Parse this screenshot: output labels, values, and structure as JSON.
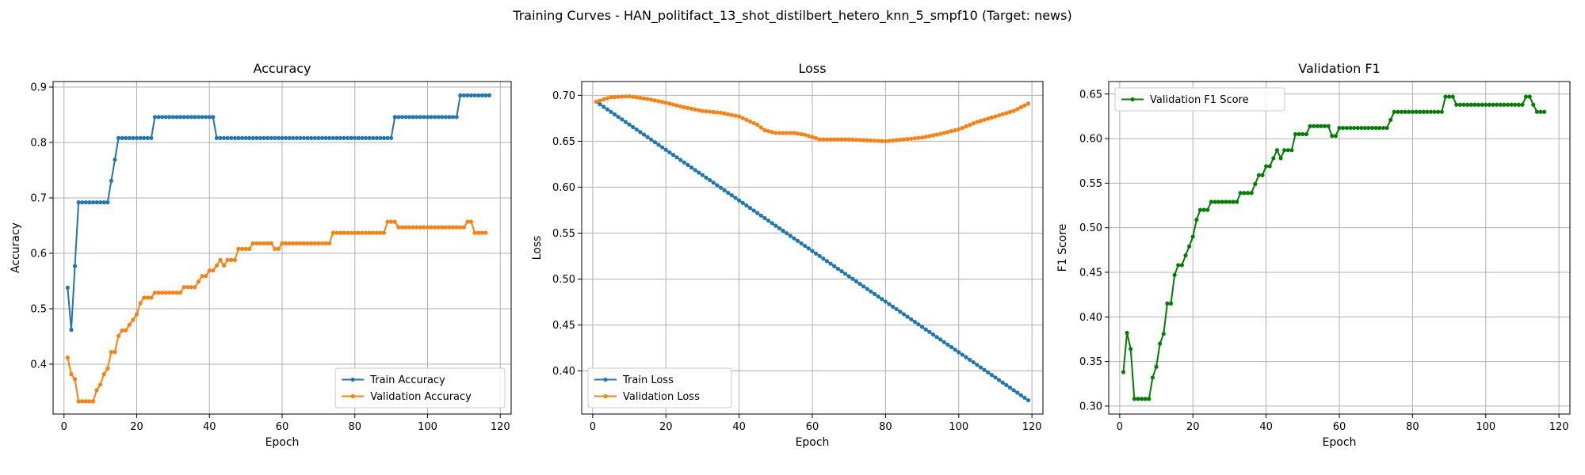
{
  "figure": {
    "suptitle": "Training Curves - HAN_politifact_13_shot_distilbert_hetero_knn_5_smpf10 (Target: news)"
  },
  "colors": {
    "train": "#1f77b4",
    "validation": "#ff7f0e",
    "f1": "#008000",
    "grid": "#b0b0b0"
  },
  "chart_data": [
    {
      "type": "line",
      "title": "Accuracy",
      "xlabel": "Epoch",
      "ylabel": "Accuracy",
      "xlim": [
        -3,
        123
      ],
      "ylim": [
        0.31,
        0.91
      ],
      "xticks": [
        0,
        20,
        40,
        60,
        80,
        100,
        120
      ],
      "yticks": [
        0.4,
        0.5,
        0.6,
        0.7,
        0.8,
        0.9
      ],
      "grid": true,
      "legend_position": "lower-right",
      "x_start": 1,
      "series": [
        {
          "name": "Train Accuracy",
          "color": "#1f77b4",
          "runs": [
            [
              0.538,
              1
            ],
            [
              0.462,
              1
            ],
            [
              0.577,
              1
            ],
            [
              0.692,
              9
            ],
            [
              0.731,
              1
            ],
            [
              0.769,
              1
            ],
            [
              0.808,
              10
            ],
            [
              0.846,
              17
            ],
            [
              0.808,
              49
            ],
            [
              0.846,
              18
            ],
            [
              0.885,
              9
            ]
          ]
        },
        {
          "name": "Validation Accuracy",
          "color": "#ff7f0e",
          "runs": [
            [
              0.412,
              1
            ],
            [
              0.382,
              1
            ],
            [
              0.373,
              1
            ],
            [
              0.333,
              5
            ],
            [
              0.353,
              1
            ],
            [
              0.363,
              1
            ],
            [
              0.382,
              1
            ],
            [
              0.392,
              1
            ],
            [
              0.422,
              2
            ],
            [
              0.451,
              1
            ],
            [
              0.461,
              2
            ],
            [
              0.471,
              1
            ],
            [
              0.48,
              1
            ],
            [
              0.49,
              1
            ],
            [
              0.51,
              1
            ],
            [
              0.52,
              3
            ],
            [
              0.529,
              8
            ],
            [
              0.539,
              4
            ],
            [
              0.549,
              1
            ],
            [
              0.559,
              2
            ],
            [
              0.569,
              2
            ],
            [
              0.578,
              1
            ],
            [
              0.588,
              1
            ],
            [
              0.578,
              1
            ],
            [
              0.588,
              3
            ],
            [
              0.608,
              4
            ],
            [
              0.618,
              6
            ],
            [
              0.608,
              2
            ],
            [
              0.618,
              14
            ],
            [
              0.637,
              15
            ],
            [
              0.657,
              3
            ],
            [
              0.647,
              19
            ],
            [
              0.657,
              2
            ],
            [
              0.637,
              4
            ]
          ]
        }
      ]
    },
    {
      "type": "line",
      "title": "Loss",
      "xlabel": "Epoch",
      "ylabel": "Loss",
      "xlim": [
        -3,
        123
      ],
      "ylim": [
        0.353,
        0.715
      ],
      "xticks": [
        0,
        20,
        40,
        60,
        80,
        100,
        120
      ],
      "yticks": [
        0.4,
        0.45,
        0.5,
        0.55,
        0.6,
        0.65,
        0.7
      ],
      "grid": true,
      "legend_position": "lower-left",
      "x_start": 1,
      "series": [
        {
          "name": "Train Loss",
          "color": "#1f77b4",
          "linear": {
            "from": 0.693,
            "to": 0.368,
            "count": 119
          }
        },
        {
          "name": "Validation Loss",
          "color": "#ff7f0e",
          "points": [
            [
              1,
              0.693
            ],
            [
              5,
              0.698
            ],
            [
              10,
              0.699
            ],
            [
              15,
              0.696
            ],
            [
              20,
              0.692
            ],
            [
              25,
              0.687
            ],
            [
              30,
              0.683
            ],
            [
              35,
              0.681
            ],
            [
              40,
              0.677
            ],
            [
              45,
              0.668
            ],
            [
              47,
              0.662
            ],
            [
              50,
              0.659
            ],
            [
              55,
              0.659
            ],
            [
              58,
              0.657
            ],
            [
              62,
              0.652
            ],
            [
              70,
              0.652
            ],
            [
              75,
              0.651
            ],
            [
              80,
              0.65
            ],
            [
              85,
              0.652
            ],
            [
              90,
              0.654
            ],
            [
              95,
              0.658
            ],
            [
              100,
              0.663
            ],
            [
              105,
              0.671
            ],
            [
              110,
              0.677
            ],
            [
              115,
              0.683
            ],
            [
              119,
              0.691
            ]
          ]
        }
      ]
    },
    {
      "type": "line",
      "title": "Validation F1",
      "xlabel": "Epoch",
      "ylabel": "F1 Score",
      "xlim": [
        -3,
        123
      ],
      "ylim": [
        0.291,
        0.664
      ],
      "xticks": [
        0,
        20,
        40,
        60,
        80,
        100,
        120
      ],
      "yticks": [
        0.3,
        0.35,
        0.4,
        0.45,
        0.5,
        0.55,
        0.6,
        0.65
      ],
      "grid": true,
      "legend_position": "upper-left",
      "x_start": 1,
      "series": [
        {
          "name": "Validation F1 Score",
          "color": "#008000",
          "runs": [
            [
              0.338,
              1
            ],
            [
              0.382,
              1
            ],
            [
              0.364,
              1
            ],
            [
              0.308,
              5
            ],
            [
              0.332,
              1
            ],
            [
              0.344,
              1
            ],
            [
              0.37,
              1
            ],
            [
              0.381,
              1
            ],
            [
              0.415,
              2
            ],
            [
              0.447,
              1
            ],
            [
              0.458,
              2
            ],
            [
              0.469,
              1
            ],
            [
              0.479,
              1
            ],
            [
              0.49,
              1
            ],
            [
              0.509,
              1
            ],
            [
              0.52,
              3
            ],
            [
              0.529,
              8
            ],
            [
              0.539,
              4
            ],
            [
              0.549,
              1
            ],
            [
              0.559,
              2
            ],
            [
              0.569,
              2
            ],
            [
              0.578,
              1
            ],
            [
              0.587,
              1
            ],
            [
              0.578,
              1
            ],
            [
              0.587,
              3
            ],
            [
              0.605,
              4
            ],
            [
              0.614,
              6
            ],
            [
              0.603,
              2
            ],
            [
              0.612,
              14
            ],
            [
              0.621,
              1
            ],
            [
              0.63,
              14
            ],
            [
              0.647,
              3
            ],
            [
              0.638,
              19
            ],
            [
              0.647,
              2
            ],
            [
              0.638,
              1
            ],
            [
              0.63,
              3
            ]
          ]
        }
      ]
    }
  ]
}
